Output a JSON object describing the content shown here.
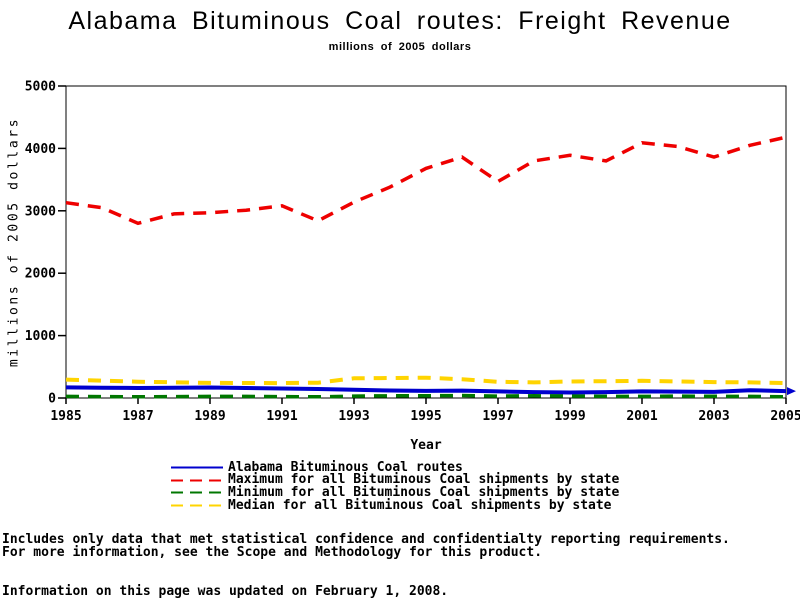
{
  "title": "Alabama Bituminous Coal routes: Freight Revenue",
  "subtitle": "millions of 2005 dollars",
  "chart_data": {
    "type": "line",
    "title": "Alabama Bituminous Coal routes: Freight Revenue",
    "subtitle": "millions of 2005 dollars",
    "xlabel": "Year",
    "ylabel": "millions of 2005 dollars",
    "xlim": [
      1985,
      2005
    ],
    "ylim": [
      0,
      5000
    ],
    "xticks": [
      1985,
      1987,
      1989,
      1991,
      1993,
      1995,
      1997,
      1999,
      2001,
      2003,
      2005
    ],
    "yticks": [
      0,
      1000,
      2000,
      3000,
      4000,
      5000
    ],
    "grid": false,
    "legend_position": "bottom",
    "x": [
      1985,
      1986,
      1987,
      1988,
      1989,
      1990,
      1991,
      1992,
      1993,
      1994,
      1995,
      1996,
      1997,
      1998,
      1999,
      2000,
      2001,
      2002,
      2003,
      2004,
      2005
    ],
    "series": [
      {
        "name": "Alabama Bituminous Coal routes",
        "color": "#0000CE",
        "style": "solid",
        "width": 4,
        "end_arrow": true,
        "values": [
          170,
          165,
          160,
          164,
          168,
          160,
          152,
          145,
          132,
          120,
          114,
          118,
          105,
          95,
          88,
          95,
          105,
          102,
          97,
          125,
          110
        ]
      },
      {
        "name": "Maximum for all Bituminous Coal shipments by state",
        "color": "#EE0000",
        "style": "dashed",
        "width": 3.5,
        "end_arrow": false,
        "values": [
          3130,
          3050,
          2800,
          2950,
          2970,
          3010,
          3080,
          2840,
          3140,
          3380,
          3680,
          3860,
          3470,
          3800,
          3890,
          3800,
          4090,
          4030,
          3860,
          4050,
          4180
        ]
      },
      {
        "name": "Minimum for all Bituminous Coal shipments by state",
        "color": "#007700",
        "style": "dashed",
        "width": 3.5,
        "end_arrow": false,
        "values": [
          25,
          22,
          20,
          22,
          25,
          25,
          22,
          20,
          30,
          35,
          35,
          40,
          30,
          35,
          30,
          28,
          25,
          30,
          28,
          25,
          20
        ]
      },
      {
        "name": "Median for all Bituminous Coal shipments by state",
        "color": "#FFD400",
        "style": "dashed",
        "width": 4,
        "end_arrow": false,
        "values": [
          295,
          278,
          262,
          252,
          242,
          240,
          238,
          245,
          315,
          320,
          325,
          300,
          260,
          250,
          265,
          270,
          275,
          265,
          255,
          250,
          240
        ]
      }
    ]
  },
  "footnotes": {
    "line1": "Includes only data that met statistical confidence and confidentialty reporting requirements.",
    "line2": "For more information, see the Scope and Methodology for this product.",
    "line3": "Information on this page was updated on February 1, 2008."
  }
}
